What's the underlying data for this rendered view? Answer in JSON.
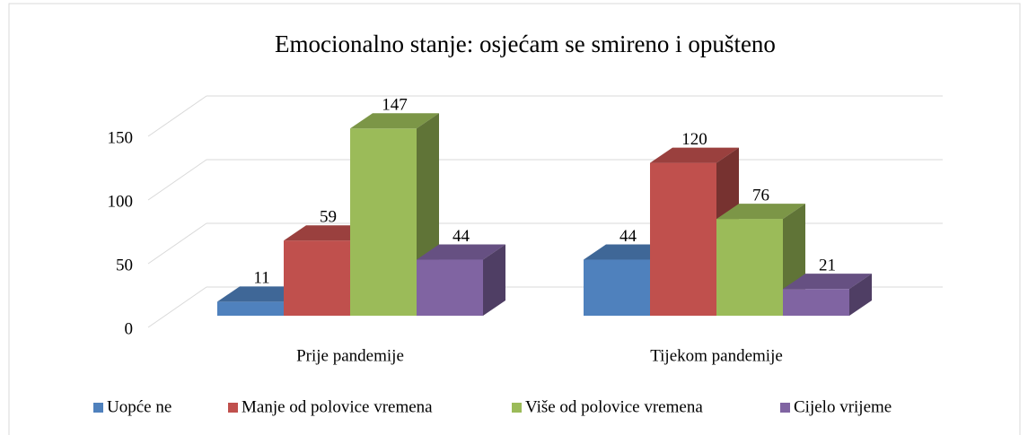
{
  "chart_data": {
    "type": "bar3d",
    "title": "Emocionalno stanje: osjećam se smireno i opušteno",
    "categories": [
      "Prije pandemije",
      "Tijekom pandemije"
    ],
    "series": [
      {
        "name": "Uopće ne",
        "color": "#4f81bd",
        "values": [
          11,
          44
        ]
      },
      {
        "name": "Manje od polovice vremena",
        "color": "#c0504d",
        "values": [
          59,
          120
        ]
      },
      {
        "name": "Više od polovice vremena",
        "color": "#9bbb59",
        "values": [
          147,
          76
        ]
      },
      {
        "name": "Cijelo vrijeme",
        "color": "#8064a2",
        "values": [
          44,
          21
        ]
      }
    ],
    "ylim": [
      0,
      150
    ],
    "yticks": [
      0,
      50,
      100,
      150
    ],
    "grid": true,
    "legend": "bottom"
  }
}
